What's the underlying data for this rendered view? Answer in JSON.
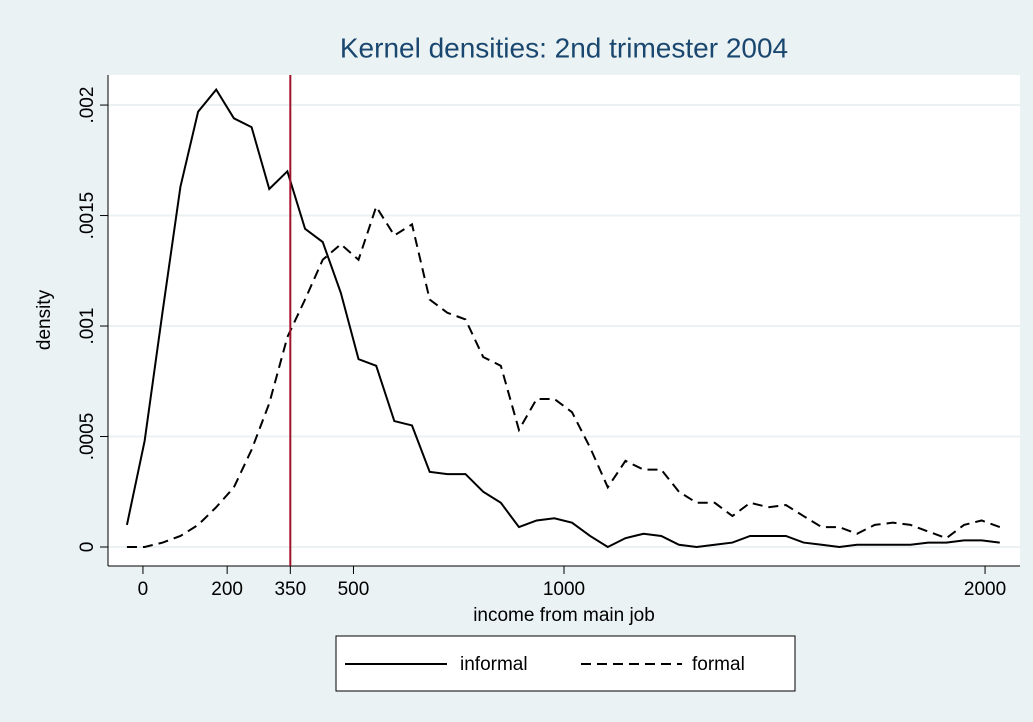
{
  "chart_data": {
    "type": "line",
    "title": "Kernel densities: 2nd trimester 2004",
    "x_label": "income from main job",
    "y_label": "density",
    "x": [
      -38,
      4,
      47,
      89,
      131,
      174,
      216,
      258,
      300,
      343,
      385,
      427,
      470,
      512,
      554,
      597,
      639,
      681,
      723,
      766,
      808,
      850,
      893,
      935,
      977,
      1019,
      1062,
      1104,
      1146,
      1189,
      1231,
      1273,
      1315,
      1358,
      1400,
      1442,
      1485,
      1527,
      1569,
      1612,
      1654,
      1696,
      1738,
      1781,
      1823,
      1865,
      1908,
      1950,
      1992,
      2035
    ],
    "series": [
      {
        "name": "informal",
        "color": "#000000",
        "dash": "solid",
        "values": [
          0.0001,
          0.00048,
          0.00107,
          0.00163,
          0.00197,
          0.00207,
          0.00194,
          0.0019,
          0.00162,
          0.0017,
          0.00144,
          0.00138,
          0.00115,
          0.00085,
          0.00082,
          0.00057,
          0.00055,
          0.00034,
          0.00033,
          0.00033,
          0.00025,
          0.0002,
          9e-05,
          0.00012,
          0.00013,
          0.00011,
          5e-05,
          0,
          4e-05,
          6e-05,
          5e-05,
          1e-05,
          0,
          1e-05,
          2e-05,
          5e-05,
          5e-05,
          5e-05,
          2e-05,
          1e-05,
          0,
          1e-05,
          1e-05,
          1e-05,
          1e-05,
          2e-05,
          2e-05,
          3e-05,
          3e-05,
          2e-05
        ]
      },
      {
        "name": "formal",
        "color": "#000000",
        "dash": "dashed",
        "values": [
          0,
          0,
          2e-05,
          5e-05,
          0.0001,
          0.00018,
          0.00027,
          0.00044,
          0.00065,
          0.00095,
          0.00112,
          0.0013,
          0.00137,
          0.0013,
          0.00154,
          0.00141,
          0.00146,
          0.00112,
          0.00106,
          0.00103,
          0.00086,
          0.00082,
          0.00053,
          0.00067,
          0.00067,
          0.00061,
          0.00045,
          0.00027,
          0.00039,
          0.00035,
          0.00035,
          0.00025,
          0.0002,
          0.0002,
          0.00014,
          0.0002,
          0.00018,
          0.00019,
          0.00014,
          9e-05,
          9e-05,
          6e-05,
          0.0001,
          0.00011,
          0.0001,
          7e-05,
          4e-05,
          0.0001,
          0.00012,
          9e-05
        ]
      }
    ],
    "xline": 350,
    "xline_color": "#a0122a",
    "xlim": [
      -83,
      2083
    ],
    "xticks": [
      0,
      200,
      350,
      500,
      1000,
      2000
    ],
    "ylim": [
      -8.6e-05,
      0.002136
    ],
    "yticks": [
      0,
      {
        "value": 0.0005,
        "label": ".0005"
      },
      {
        "value": 0.001,
        "label": ".001"
      },
      {
        "value": 0.0015,
        "label": ".0015"
      },
      {
        "value": 0.002,
        "label": ".002"
      }
    ],
    "grid": true,
    "legend": "bottom"
  }
}
